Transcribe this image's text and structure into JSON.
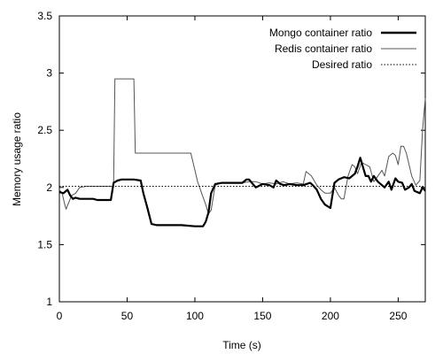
{
  "chart_data": {
    "type": "line",
    "xlabel": "Time (s)",
    "ylabel": "Memory usage ratio",
    "xlim": [
      0,
      270
    ],
    "ylim": [
      1,
      3.5
    ],
    "xticks": [
      0,
      50,
      100,
      150,
      200,
      250
    ],
    "yticks": [
      1,
      1.5,
      2,
      2.5,
      3,
      3.5
    ],
    "grid": false,
    "legend_position": "top-right",
    "series": [
      {
        "name": "Mongo container ratio",
        "color": "#000000",
        "style": "thick",
        "x": [
          0,
          3,
          6,
          8,
          10,
          12,
          15,
          20,
          25,
          28,
          30,
          38,
          40,
          43,
          46,
          50,
          55,
          60,
          62,
          65,
          68,
          72,
          80,
          90,
          100,
          106,
          108,
          110,
          112,
          115,
          120,
          125,
          130,
          135,
          138,
          140,
          142,
          145,
          150,
          155,
          158,
          160,
          163,
          166,
          170,
          175,
          180,
          185,
          187,
          190,
          193,
          196,
          200,
          203,
          206,
          210,
          214,
          216,
          218,
          220,
          222,
          224,
          226,
          228,
          230,
          232,
          235,
          238,
          240,
          243,
          245,
          248,
          250,
          253,
          255,
          258,
          260,
          262,
          264,
          266,
          268,
          270
        ],
        "y": [
          1.96,
          1.95,
          1.98,
          1.93,
          1.9,
          1.91,
          1.9,
          1.9,
          1.9,
          1.89,
          1.89,
          1.89,
          2.04,
          2.06,
          2.07,
          2.07,
          2.07,
          2.06,
          1.95,
          1.82,
          1.68,
          1.67,
          1.67,
          1.67,
          1.66,
          1.66,
          1.7,
          1.78,
          1.95,
          2.03,
          2.04,
          2.04,
          2.04,
          2.04,
          2.07,
          2.07,
          2.04,
          2.0,
          2.03,
          2.02,
          2.0,
          2.06,
          2.03,
          2.02,
          2.03,
          2.02,
          2.02,
          2.04,
          2.02,
          1.98,
          1.9,
          1.85,
          1.82,
          2.04,
          2.07,
          2.09,
          2.08,
          2.1,
          2.12,
          2.18,
          2.26,
          2.18,
          2.1,
          2.1,
          2.05,
          2.1,
          2.05,
          2.02,
          2.0,
          2.05,
          1.98,
          2.08,
          2.05,
          2.04,
          1.98,
          2.0,
          2.03,
          1.97,
          1.96,
          1.95,
          2.0,
          1.97
        ]
      },
      {
        "name": "Redis container ratio",
        "color": "#555555",
        "style": "thin",
        "x": [
          0,
          2,
          4,
          5,
          7,
          9,
          12,
          15,
          20,
          25,
          30,
          35,
          40,
          41,
          42,
          45,
          50,
          53,
          55,
          56,
          60,
          70,
          80,
          90,
          97,
          98,
          100,
          102,
          105,
          108,
          110,
          112,
          115,
          120,
          125,
          130,
          135,
          140,
          145,
          150,
          155,
          160,
          165,
          170,
          175,
          180,
          182,
          184,
          186,
          190,
          193,
          196,
          200,
          203,
          206,
          208,
          210,
          213,
          216,
          218,
          220,
          223,
          226,
          229,
          232,
          235,
          238,
          240,
          243,
          246,
          248,
          250,
          252,
          254,
          256,
          260,
          263,
          266,
          268,
          270
        ],
        "y": [
          1.98,
          1.95,
          1.85,
          1.81,
          1.87,
          1.93,
          1.95,
          2.0,
          2.01,
          2.01,
          2.01,
          2.01,
          2.01,
          2.95,
          2.95,
          2.95,
          2.95,
          2.95,
          2.95,
          2.3,
          2.3,
          2.3,
          2.3,
          2.3,
          2.3,
          2.25,
          2.15,
          2.05,
          1.95,
          1.85,
          1.77,
          1.8,
          2.02,
          2.04,
          2.04,
          2.04,
          2.04,
          2.05,
          2.05,
          2.03,
          2.04,
          2.03,
          2.05,
          2.03,
          2.04,
          2.03,
          2.14,
          2.12,
          2.1,
          2.02,
          1.98,
          1.95,
          1.95,
          2.0,
          1.93,
          1.9,
          1.9,
          2.1,
          2.2,
          2.18,
          2.12,
          2.22,
          2.2,
          2.18,
          2.05,
          2.1,
          2.15,
          2.1,
          2.27,
          2.3,
          2.28,
          2.2,
          2.36,
          2.36,
          2.3,
          2.1,
          2.02,
          2.06,
          2.5,
          2.78
        ]
      },
      {
        "name": "Desired ratio",
        "color": "#000000",
        "style": "dotted",
        "x": [
          0,
          270
        ],
        "y": [
          2.01,
          2.01
        ]
      }
    ]
  }
}
